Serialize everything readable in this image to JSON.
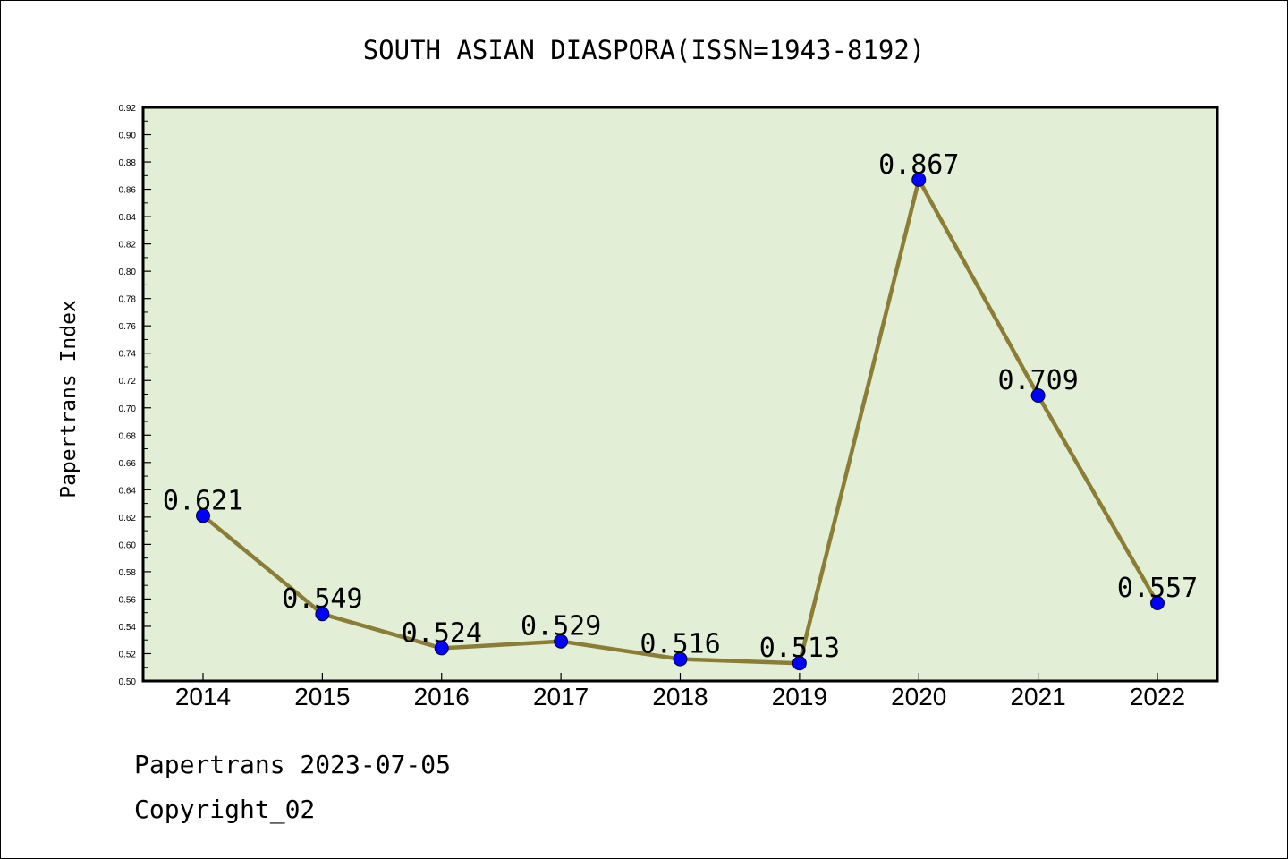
{
  "chart_data": {
    "type": "line",
    "title": "SOUTH ASIAN DIASPORA(ISSN=1943-8192)",
    "ylabel": "Papertrans Index",
    "xlabel": "",
    "categories": [
      "2014",
      "2015",
      "2016",
      "2017",
      "2018",
      "2019",
      "2020",
      "2021",
      "2022"
    ],
    "values": [
      0.621,
      0.549,
      0.524,
      0.529,
      0.516,
      0.513,
      0.867,
      0.709,
      0.557
    ],
    "data_labels": [
      "0.621",
      "0.549",
      "0.524",
      "0.529",
      "0.516",
      "0.513",
      "0.867",
      "0.709",
      "0.557"
    ],
    "ylim": [
      0.5,
      0.92
    ],
    "yticks": [
      "0.50",
      "0.52",
      "0.54",
      "0.56",
      "0.58",
      "0.60",
      "0.62",
      "0.64",
      "0.66",
      "0.68",
      "0.70",
      "0.72",
      "0.74",
      "0.76",
      "0.78",
      "0.80",
      "0.82",
      "0.84",
      "0.86",
      "0.88",
      "0.90",
      "0.92"
    ],
    "grid": false,
    "colors": {
      "plot_background": "#e2efd6",
      "line": "#8b7d35",
      "marker": "#0000ff"
    }
  },
  "footer": {
    "line1": "Papertrans 2023-07-05",
    "line2": "Copyright_02"
  }
}
